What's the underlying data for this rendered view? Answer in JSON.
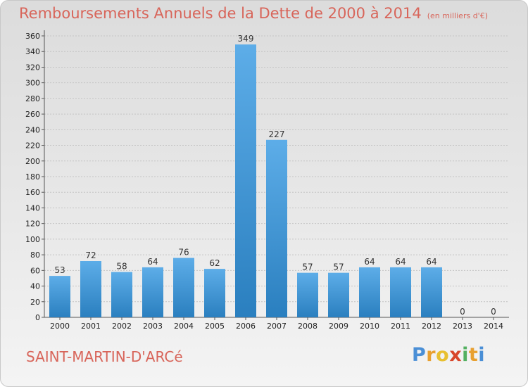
{
  "header": {
    "title": "Remboursements Annuels de la Dette de 2000 à 2014",
    "subtitle": "(en milliers d'€)"
  },
  "footer": {
    "commune": "SAINT-MARTIN-D'ARCé",
    "logo_text": "Proxiti"
  },
  "colors": {
    "bar_light": "#5dade8",
    "bar_dark": "#2a7fbf",
    "title": "#d8655a"
  },
  "chart_data": {
    "type": "bar",
    "categories": [
      "2000",
      "2001",
      "2002",
      "2003",
      "2004",
      "2005",
      "2006",
      "2007",
      "2008",
      "2009",
      "2010",
      "2011",
      "2012",
      "2013",
      "2014"
    ],
    "values": [
      53,
      72,
      58,
      64,
      76,
      62,
      349,
      227,
      57,
      57,
      64,
      64,
      64,
      0,
      0
    ],
    "data_labels": [
      "53",
      "72",
      "58",
      "64",
      "76",
      "62",
      "349",
      "227",
      "57",
      "57",
      "64",
      "64",
      "64",
      "0",
      "0"
    ],
    "ylim": [
      0,
      360
    ],
    "yticks": [
      "0",
      "20",
      "40",
      "60",
      "80",
      "100",
      "120",
      "140",
      "160",
      "180",
      "200",
      "220",
      "240",
      "260",
      "280",
      "300",
      "320",
      "340",
      "360"
    ],
    "xlabel": "",
    "ylabel": "",
    "grid": true
  }
}
